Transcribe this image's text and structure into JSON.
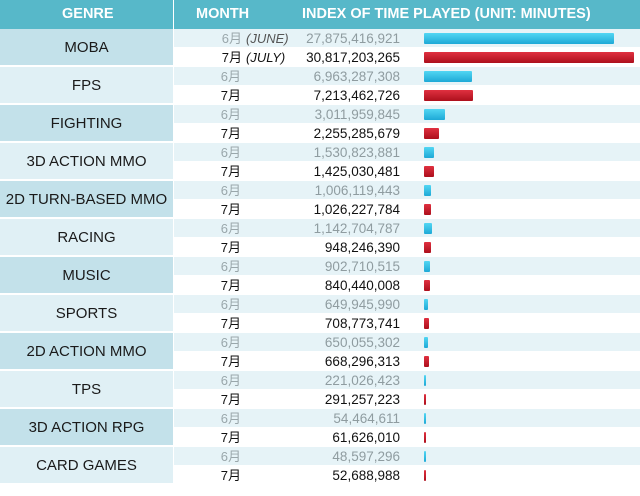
{
  "header": {
    "genre": "GENRE",
    "month": "MONTH",
    "index": "INDEX OF TIME PLAYED (UNIT: MINUTES)"
  },
  "notes": {
    "june": "(JUNE)",
    "july": "(JULY)"
  },
  "colors": {
    "header": "#57b8c9",
    "june_bar": "#29b6e0",
    "july_bar": "#c41a28"
  },
  "chart_data": {
    "type": "bar",
    "orientation": "horizontal",
    "title": "INDEX OF TIME PLAYED (UNIT: MINUTES)",
    "category_header": "GENRE",
    "series_header": "MONTH",
    "categories": [
      "MOBA",
      "FPS",
      "FIGHTING",
      "3D ACTION MMO",
      "2D TURN-BASED MMO",
      "RACING",
      "MUSIC",
      "SPORTS",
      "2D ACTION MMO",
      "TPS",
      "3D ACTION RPG",
      "CARD GAMES"
    ],
    "series": [
      {
        "name": "6月",
        "values": [
          27875416921,
          6963287308,
          3011959845,
          1530823881,
          1006119443,
          1142704787,
          902710515,
          649945990,
          650055302,
          221026423,
          54464611,
          48597296
        ]
      },
      {
        "name": "7月",
        "values": [
          30817203265,
          7213462726,
          2255285679,
          1425030481,
          1026227784,
          948246390,
          840440008,
          708773741,
          668296313,
          291257223,
          61626010,
          52688988
        ]
      }
    ],
    "value_labels": [
      [
        "27,875,416,921",
        "30,817,203,265"
      ],
      [
        "6,963,287,308",
        "7,213,462,726"
      ],
      [
        "3,011,959,845",
        "2,255,285,679"
      ],
      [
        "1,530,823,881",
        "1,425,030,481"
      ],
      [
        "1,006,119,443",
        "1,026,227,784"
      ],
      [
        "1,142,704,787",
        "948,246,390"
      ],
      [
        "902,710,515",
        "840,440,008"
      ],
      [
        "649,945,990",
        "708,773,741"
      ],
      [
        "650,055,302",
        "668,296,313"
      ],
      [
        "221,026,423",
        "291,257,223"
      ],
      [
        "54,464,611",
        "61,626,010"
      ],
      [
        "48,597,296",
        "52,688,988"
      ]
    ],
    "grid": false
  }
}
